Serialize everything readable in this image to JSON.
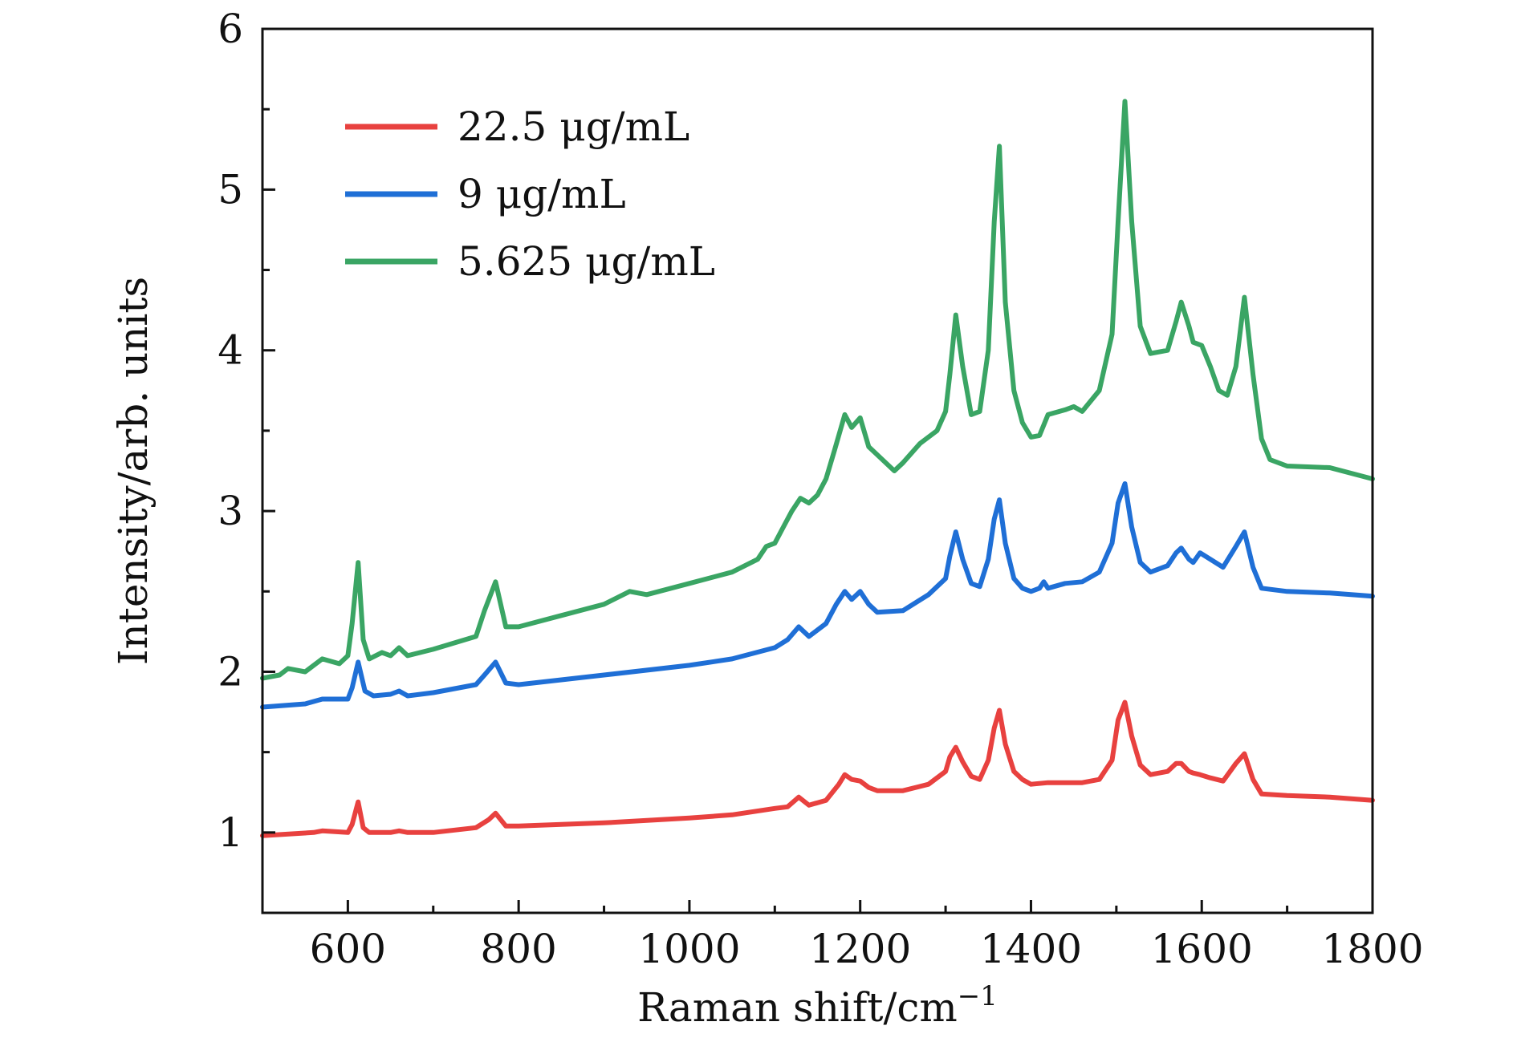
{
  "chart_data": {
    "type": "line",
    "title": "",
    "xlabel": "Raman shift/cm",
    "xlabel_sup": "−1",
    "ylabel": "Intensity/arb. units",
    "xlim": [
      500,
      1800
    ],
    "ylim": [
      0.5,
      6
    ],
    "xticks": [
      600,
      800,
      1000,
      1200,
      1400,
      1600,
      1800
    ],
    "yticks": [
      1,
      2,
      3,
      4,
      5,
      6
    ],
    "xtick_labels": [
      "600",
      "800",
      "1000",
      "1200",
      "1400",
      "1600",
      "1800"
    ],
    "ytick_labels": [
      "1",
      "2",
      "3",
      "4",
      "5",
      "6"
    ],
    "grid": false,
    "legend_position": "top-left",
    "series": [
      {
        "name": "22.5 μg/mL",
        "color": "#e8413f",
        "x": [
          500,
          560,
          570,
          600,
          605,
          612,
          618,
          625,
          650,
          660,
          670,
          700,
          750,
          765,
          773,
          785,
          800,
          900,
          1000,
          1050,
          1100,
          1115,
          1128,
          1140,
          1160,
          1175,
          1182,
          1190,
          1200,
          1210,
          1220,
          1250,
          1280,
          1300,
          1305,
          1312,
          1320,
          1330,
          1340,
          1350,
          1357,
          1363,
          1370,
          1380,
          1390,
          1400,
          1420,
          1440,
          1460,
          1480,
          1495,
          1502,
          1510,
          1518,
          1528,
          1540,
          1560,
          1570,
          1576,
          1585,
          1590,
          1598,
          1610,
          1625,
          1640,
          1650,
          1660,
          1670,
          1700,
          1750,
          1800
        ],
        "y": [
          0.98,
          1.0,
          1.01,
          1.0,
          1.05,
          1.19,
          1.03,
          1.0,
          1.0,
          1.01,
          1.0,
          1.0,
          1.03,
          1.08,
          1.12,
          1.04,
          1.04,
          1.06,
          1.09,
          1.11,
          1.15,
          1.16,
          1.22,
          1.17,
          1.2,
          1.3,
          1.36,
          1.33,
          1.32,
          1.28,
          1.26,
          1.26,
          1.3,
          1.38,
          1.47,
          1.53,
          1.44,
          1.35,
          1.33,
          1.45,
          1.65,
          1.76,
          1.55,
          1.38,
          1.33,
          1.3,
          1.31,
          1.31,
          1.31,
          1.33,
          1.45,
          1.7,
          1.81,
          1.6,
          1.42,
          1.36,
          1.38,
          1.43,
          1.43,
          1.38,
          1.37,
          1.36,
          1.34,
          1.32,
          1.43,
          1.49,
          1.33,
          1.24,
          1.23,
          1.22,
          1.2
        ]
      },
      {
        "name": "9 μg/mL",
        "color": "#1f6fd6",
        "x": [
          500,
          550,
          570,
          600,
          605,
          612,
          620,
          630,
          650,
          660,
          670,
          700,
          750,
          760,
          773,
          785,
          800,
          900,
          1000,
          1050,
          1100,
          1115,
          1128,
          1140,
          1160,
          1172,
          1182,
          1190,
          1200,
          1210,
          1220,
          1250,
          1280,
          1300,
          1305,
          1312,
          1320,
          1330,
          1340,
          1350,
          1357,
          1363,
          1370,
          1380,
          1390,
          1400,
          1410,
          1415,
          1420,
          1440,
          1460,
          1480,
          1495,
          1502,
          1510,
          1518,
          1528,
          1540,
          1560,
          1570,
          1576,
          1585,
          1590,
          1598,
          1610,
          1625,
          1640,
          1650,
          1660,
          1670,
          1700,
          1750,
          1800
        ],
        "y": [
          1.78,
          1.8,
          1.83,
          1.83,
          1.9,
          2.06,
          1.88,
          1.85,
          1.86,
          1.88,
          1.85,
          1.87,
          1.92,
          1.98,
          2.06,
          1.93,
          1.92,
          1.98,
          2.04,
          2.08,
          2.15,
          2.2,
          2.28,
          2.22,
          2.3,
          2.42,
          2.5,
          2.45,
          2.5,
          2.42,
          2.37,
          2.38,
          2.48,
          2.58,
          2.72,
          2.87,
          2.7,
          2.55,
          2.53,
          2.7,
          2.95,
          3.07,
          2.8,
          2.58,
          2.52,
          2.5,
          2.52,
          2.56,
          2.52,
          2.55,
          2.56,
          2.62,
          2.8,
          3.05,
          3.17,
          2.9,
          2.68,
          2.62,
          2.66,
          2.74,
          2.77,
          2.7,
          2.68,
          2.74,
          2.7,
          2.65,
          2.78,
          2.87,
          2.65,
          2.52,
          2.5,
          2.49,
          2.47
        ]
      },
      {
        "name": "5.625 μg/mL",
        "color": "#3aa564",
        "x": [
          500,
          520,
          530,
          550,
          570,
          590,
          600,
          605,
          612,
          618,
          625,
          640,
          650,
          660,
          670,
          700,
          750,
          760,
          773,
          785,
          800,
          850,
          900,
          930,
          950,
          1000,
          1050,
          1080,
          1090,
          1100,
          1110,
          1120,
          1130,
          1140,
          1150,
          1160,
          1170,
          1182,
          1190,
          1200,
          1210,
          1220,
          1230,
          1240,
          1250,
          1270,
          1290,
          1300,
          1305,
          1312,
          1320,
          1330,
          1340,
          1350,
          1357,
          1363,
          1370,
          1380,
          1390,
          1400,
          1410,
          1420,
          1440,
          1450,
          1460,
          1480,
          1495,
          1502,
          1510,
          1518,
          1528,
          1540,
          1560,
          1570,
          1576,
          1585,
          1590,
          1600,
          1610,
          1620,
          1630,
          1640,
          1650,
          1660,
          1670,
          1680,
          1700,
          1750,
          1800
        ],
        "y": [
          1.96,
          1.98,
          2.02,
          2.0,
          2.08,
          2.05,
          2.1,
          2.3,
          2.68,
          2.2,
          2.08,
          2.12,
          2.1,
          2.15,
          2.1,
          2.14,
          2.22,
          2.38,
          2.56,
          2.28,
          2.28,
          2.35,
          2.42,
          2.5,
          2.48,
          2.55,
          2.62,
          2.7,
          2.78,
          2.8,
          2.9,
          3.0,
          3.08,
          3.05,
          3.1,
          3.2,
          3.38,
          3.6,
          3.52,
          3.58,
          3.4,
          3.35,
          3.3,
          3.25,
          3.3,
          3.42,
          3.5,
          3.62,
          3.85,
          4.22,
          3.9,
          3.6,
          3.62,
          4.0,
          4.8,
          5.27,
          4.3,
          3.75,
          3.55,
          3.46,
          3.47,
          3.6,
          3.63,
          3.65,
          3.62,
          3.75,
          4.1,
          4.8,
          5.55,
          4.8,
          4.15,
          3.98,
          4.0,
          4.18,
          4.3,
          4.15,
          4.05,
          4.03,
          3.9,
          3.75,
          3.72,
          3.9,
          4.33,
          3.85,
          3.45,
          3.32,
          3.28,
          3.27,
          3.2
        ]
      }
    ]
  }
}
